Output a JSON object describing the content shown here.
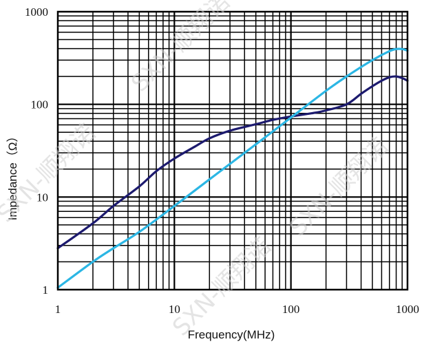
{
  "chart_data": {
    "type": "line",
    "xscale": "log",
    "yscale": "log",
    "xlim": [
      1,
      1000
    ],
    "ylim": [
      1,
      1000
    ],
    "xlabel": "Frequency(MHz)",
    "ylabel": "Impedance（Ω）",
    "xticks": [
      "1",
      "10",
      "100",
      "1000"
    ],
    "yticks": [
      "1",
      "10",
      "100",
      "1000"
    ],
    "grid": true,
    "series": [
      {
        "color": "#1c1a6e",
        "points": [
          [
            1,
            2.8
          ],
          [
            2,
            5.2
          ],
          [
            3,
            8
          ],
          [
            5,
            13
          ],
          [
            7,
            19
          ],
          [
            10,
            26
          ],
          [
            15,
            35
          ],
          [
            20,
            43
          ],
          [
            30,
            52
          ],
          [
            50,
            61
          ],
          [
            70,
            68
          ],
          [
            100,
            74
          ],
          [
            150,
            80
          ],
          [
            200,
            86
          ],
          [
            300,
            100
          ],
          [
            400,
            130
          ],
          [
            500,
            157
          ],
          [
            600,
            180
          ],
          [
            700,
            196
          ],
          [
            800,
            200
          ],
          [
            900,
            192
          ],
          [
            1000,
            180
          ]
        ]
      },
      {
        "color": "#2bb6e4",
        "points": [
          [
            1,
            1.05
          ],
          [
            2,
            2
          ],
          [
            3,
            2.8
          ],
          [
            5,
            4.2
          ],
          [
            10,
            8
          ],
          [
            20,
            15.5
          ],
          [
            50,
            37
          ],
          [
            100,
            72
          ],
          [
            200,
            140
          ],
          [
            300,
            200
          ],
          [
            500,
            300
          ],
          [
            700,
            375
          ],
          [
            800,
            395
          ],
          [
            900,
            395
          ],
          [
            1000,
            380
          ]
        ]
      }
    ]
  },
  "watermark": "SXN-顺翔诺"
}
